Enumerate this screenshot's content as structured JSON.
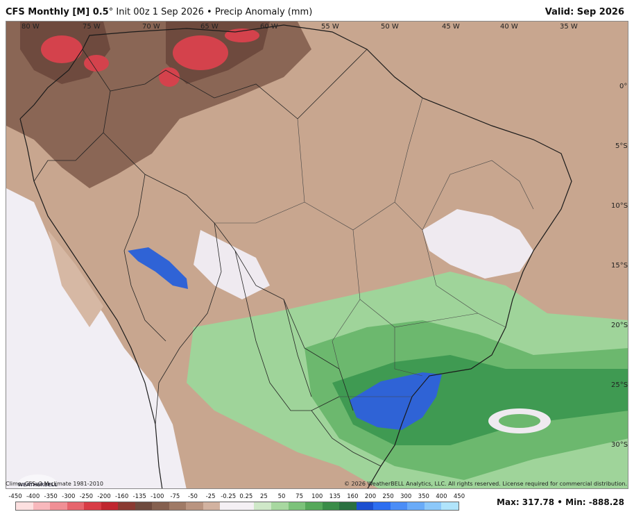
{
  "header": {
    "title_bold": "CFS Monthly [M] 0.5",
    "title_rest": "° Init 00z 1 Sep 2026 • Precip Anomaly (mm)",
    "valid": "Valid: Sep 2026"
  },
  "map": {
    "lon_labels": [
      "80 W",
      "75 W",
      "70 W",
      "65 W",
      "60 W",
      "55 W",
      "50 W",
      "45 W",
      "40 W",
      "35 W"
    ],
    "lat_labels": [
      "0°",
      "5°S",
      "10°S",
      "15°S",
      "20°S",
      "25°S",
      "30°S"
    ],
    "logo": "WEATHERBELL"
  },
  "footer": {
    "climo": "Climo: CFSv2 M-climate 1981-2010",
    "copyright": "© 2026 WeatherBELL Analytics, LLC. All rights reserved. License required for commercial distribution."
  },
  "colorbar": {
    "labels": [
      "-450",
      "-400",
      "-350",
      "-300",
      "-250",
      "-200",
      "-160",
      "-135",
      "-100",
      "-75",
      "-50",
      "-25",
      "-0.25",
      "0.25",
      "25",
      "50",
      "75",
      "100",
      "135",
      "160",
      "200",
      "250",
      "300",
      "350",
      "400",
      "450"
    ],
    "colors": [
      "#fde0e0",
      "#f8b8bc",
      "#f08f95",
      "#e6656d",
      "#d83b45",
      "#c0262f",
      "#8a3a32",
      "#6e4a3e",
      "#85604f",
      "#9f7a66",
      "#b99480",
      "#d2b2a0",
      "#f4f0f4",
      "#f4f0f4",
      "#cfe8c8",
      "#a8d8a0",
      "#7cc27a",
      "#56a85a",
      "#3a8c48",
      "#2a7040",
      "#1c4fd0",
      "#2d6ef0",
      "#4b8df6",
      "#6aabf8",
      "#8cc8fa",
      "#b0e4fb"
    ]
  },
  "stats": {
    "max_min": "Max: 317.78 • Min: -888.28"
  }
}
